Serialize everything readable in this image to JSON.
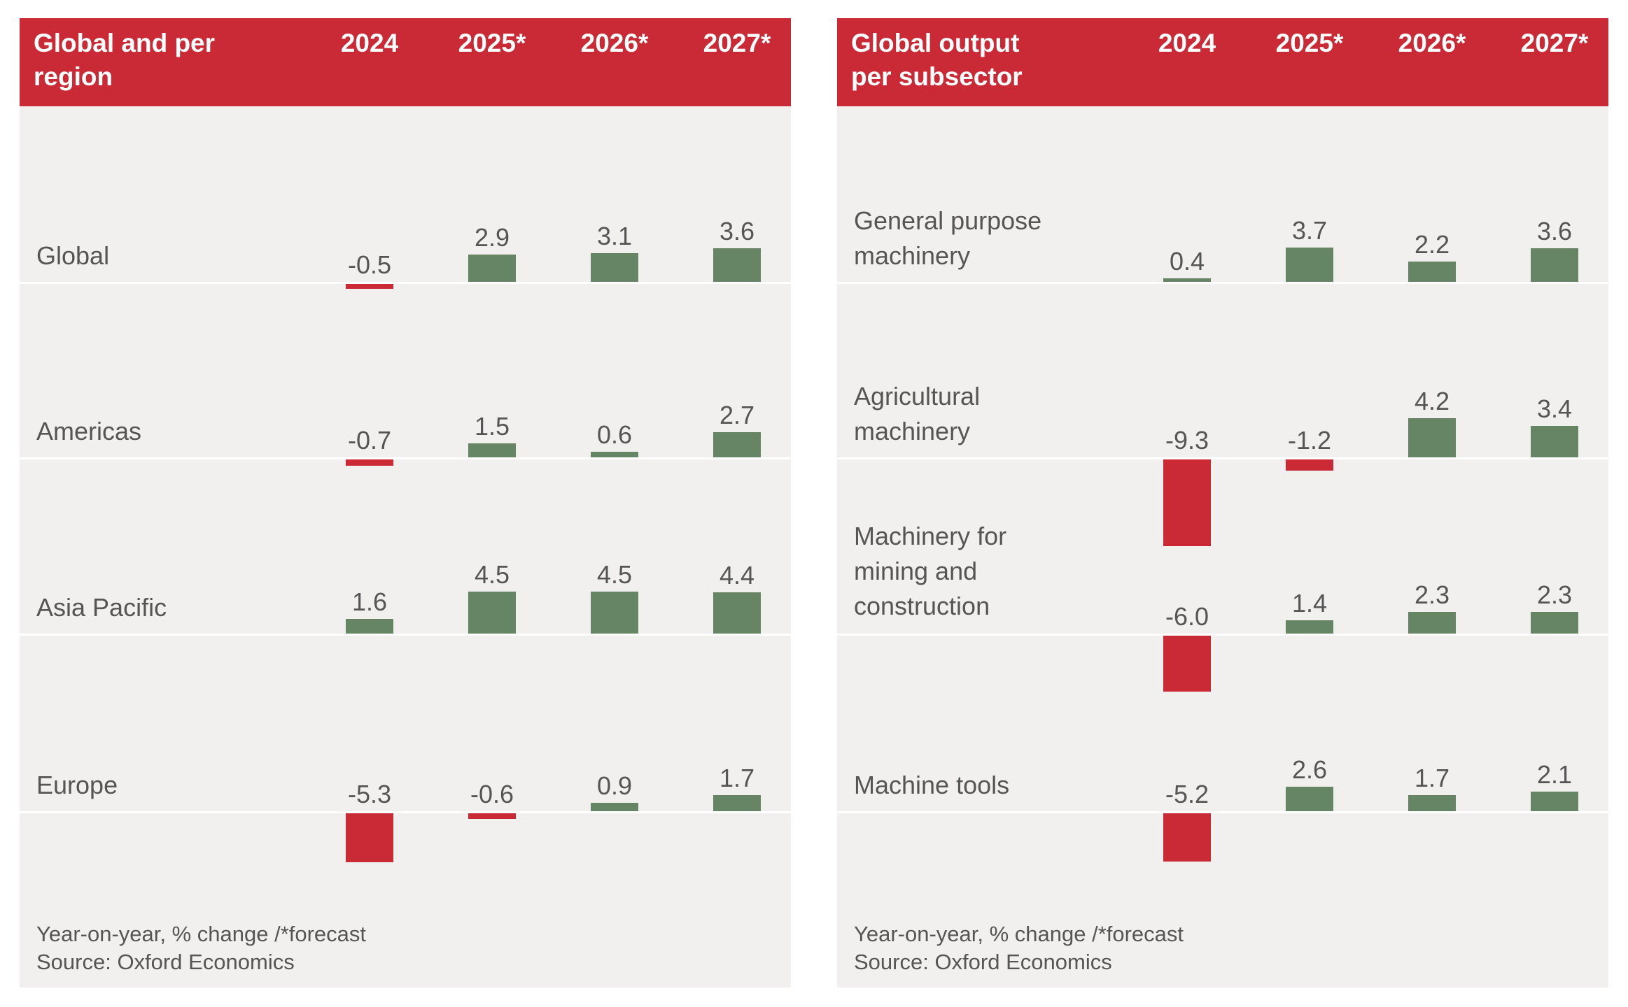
{
  "colors": {
    "header": "#c92a35",
    "positive": "#658565",
    "negative": "#c92a35",
    "background": "#f1f0ef",
    "text": "#555555"
  },
  "chart_data": [
    {
      "type": "bar",
      "title": "Global and per region",
      "categories": [
        "2024",
        "2025*",
        "2026*",
        "2027*"
      ],
      "rows": [
        {
          "name": "Global",
          "values": [
            -0.5,
            2.9,
            3.1,
            3.6
          ],
          "labels": [
            "-0.5",
            "2.9",
            "3.1",
            "3.6"
          ]
        },
        {
          "name": "Americas",
          "values": [
            -0.7,
            1.5,
            0.6,
            2.7
          ],
          "labels": [
            "-0.7",
            "1.5",
            "0.6",
            "2.7"
          ]
        },
        {
          "name": "Asia Pacific",
          "values": [
            1.6,
            4.5,
            4.5,
            4.4
          ],
          "labels": [
            "1.6",
            "4.5",
            "4.5",
            "4.4"
          ]
        },
        {
          "name": "Europe",
          "values": [
            -5.3,
            -0.6,
            0.9,
            1.7
          ],
          "labels": [
            "-5.3",
            "-0.6",
            "0.9",
            "1.7"
          ]
        }
      ],
      "note": "Year-on-year, % change /*forecast",
      "source": "Source: Oxford Economics"
    },
    {
      "type": "bar",
      "title": "Global output per subsector",
      "categories": [
        "2024",
        "2025*",
        "2026*",
        "2027*"
      ],
      "rows": [
        {
          "name": "General purpose machinery",
          "values": [
            0.4,
            3.7,
            2.2,
            3.6
          ],
          "labels": [
            "0.4",
            "3.7",
            "2.2",
            "3.6"
          ]
        },
        {
          "name": "Agricultural machinery",
          "values": [
            -9.3,
            -1.2,
            4.2,
            3.4
          ],
          "labels": [
            "-9.3",
            "-1.2",
            "4.2",
            "3.4"
          ]
        },
        {
          "name": "Machinery for mining and construction",
          "values": [
            -6.0,
            1.4,
            2.3,
            2.3
          ],
          "labels": [
            "-6.0",
            "1.4",
            "2.3",
            "2.3"
          ]
        },
        {
          "name": "Machine tools",
          "values": [
            -5.2,
            2.6,
            1.7,
            2.1
          ],
          "labels": [
            "-5.2",
            "2.6",
            "1.7",
            "2.1"
          ]
        }
      ],
      "note": "Year-on-year, % change /*forecast",
      "source": "Source: Oxford Economics"
    }
  ]
}
